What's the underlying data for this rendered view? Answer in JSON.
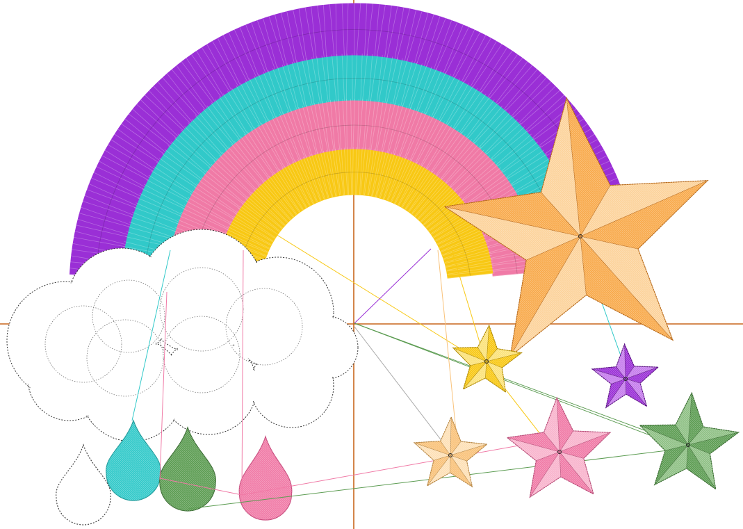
{
  "canvas": {
    "background": "#ffffff",
    "crosshair_color": "#c8651b"
  },
  "design": {
    "rainbow": {
      "bands": [
        {
          "name": "purple",
          "color": "#9a2fd6"
        },
        {
          "name": "cyan",
          "color": "#31c9c9"
        },
        {
          "name": "pink",
          "color": "#f07aa6"
        },
        {
          "name": "yellow",
          "color": "#f8c814"
        }
      ]
    },
    "cloud": {
      "outline_color": "#333333",
      "fill": "#ffffff"
    },
    "raindrops": [
      {
        "name": "outline",
        "color": "#ffffff",
        "stroke": "#444444"
      },
      {
        "name": "cyan",
        "color": "#31c9c9",
        "stroke": "#1a9a9a"
      },
      {
        "name": "green",
        "color": "#5c9c52",
        "stroke": "#3b6e33"
      },
      {
        "name": "pink",
        "color": "#f07aa6",
        "stroke": "#c94c7e"
      }
    ],
    "stars": [
      {
        "name": "big-orange",
        "color": "#f8a94a",
        "light": "#fcd29a",
        "stroke": "#b86a1a"
      },
      {
        "name": "yellow",
        "color": "#f8c814",
        "light": "#fbe27a",
        "stroke": "#b08a00"
      },
      {
        "name": "purple",
        "color": "#9a2fd6",
        "light": "#c57cec",
        "stroke": "#5e1785"
      },
      {
        "name": "light-orange",
        "color": "#f9c27a",
        "light": "#fde0b6",
        "stroke": "#b88846"
      },
      {
        "name": "pink",
        "color": "#f07aa6",
        "light": "#f8b3cc",
        "stroke": "#b84d78"
      },
      {
        "name": "green",
        "color": "#5c9c52",
        "light": "#8ec084",
        "stroke": "#3b6e33"
      }
    ],
    "jump_stitch_colors": [
      "#f8c814",
      "#9a2fd6",
      "#31c9c9",
      "#f07aa6",
      "#5c9c52",
      "#f9c27a",
      "#aaaaaa"
    ]
  }
}
